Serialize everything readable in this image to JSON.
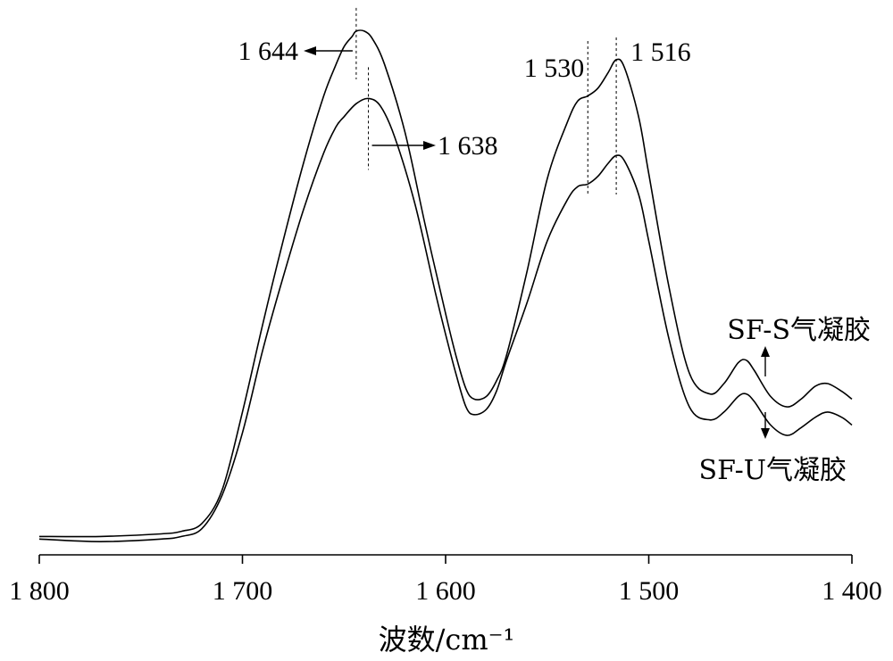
{
  "chart_data": {
    "type": "line",
    "title": "",
    "xlabel": "波数/cm⁻¹",
    "ylabel": "",
    "xlim": [
      1800,
      1400
    ],
    "x_reversed": true,
    "xticks": [
      1800,
      1700,
      1600,
      1500,
      1400
    ],
    "xtick_labels": [
      "1 800",
      "1 700",
      "1 600",
      "1 500",
      "1 400"
    ],
    "y_axis_visible": false,
    "ylim": [
      0,
      1
    ],
    "grid": false,
    "legend": "none",
    "series": [
      {
        "name": "SF-S气凝胶",
        "x": [
          1800,
          1770,
          1740,
          1730,
          1720,
          1710,
          1700,
          1690,
          1680,
          1670,
          1660,
          1654,
          1650,
          1646,
          1644,
          1640,
          1636,
          1630,
          1620,
          1610,
          1600,
          1595,
          1590,
          1586,
          1580,
          1575,
          1570,
          1560,
          1550,
          1540,
          1535,
          1530,
          1525,
          1520,
          1516,
          1512,
          1505,
          1500,
          1490,
          1480,
          1470,
          1463,
          1456,
          1452,
          1448,
          1440,
          1432,
          1425,
          1418,
          1412,
          1405,
          1400
        ],
        "y": [
          0.02,
          0.02,
          0.025,
          0.03,
          0.045,
          0.11,
          0.26,
          0.43,
          0.59,
          0.74,
          0.87,
          0.93,
          0.965,
          0.985,
          0.995,
          0.995,
          0.98,
          0.93,
          0.8,
          0.62,
          0.45,
          0.37,
          0.305,
          0.285,
          0.29,
          0.32,
          0.37,
          0.53,
          0.71,
          0.82,
          0.86,
          0.87,
          0.885,
          0.915,
          0.94,
          0.925,
          0.83,
          0.72,
          0.5,
          0.335,
          0.295,
          0.315,
          0.355,
          0.36,
          0.34,
          0.29,
          0.27,
          0.285,
          0.31,
          0.315,
          0.3,
          0.285
        ]
      },
      {
        "name": "SF-U气凝胶",
        "x": [
          1800,
          1770,
          1740,
          1730,
          1720,
          1710,
          1700,
          1690,
          1680,
          1670,
          1660,
          1654,
          1650,
          1644,
          1638,
          1632,
          1625,
          1615,
          1605,
          1600,
          1595,
          1590,
          1586,
          1580,
          1575,
          1570,
          1560,
          1550,
          1540,
          1535,
          1530,
          1525,
          1520,
          1516,
          1512,
          1505,
          1500,
          1490,
          1480,
          1470,
          1463,
          1456,
          1452,
          1448,
          1440,
          1432,
          1425,
          1418,
          1412,
          1405,
          1400
        ],
        "y": [
          0.015,
          0.01,
          0.015,
          0.02,
          0.035,
          0.1,
          0.22,
          0.38,
          0.52,
          0.65,
          0.76,
          0.81,
          0.83,
          0.855,
          0.865,
          0.85,
          0.79,
          0.66,
          0.49,
          0.41,
          0.335,
          0.27,
          0.255,
          0.265,
          0.3,
          0.36,
          0.47,
          0.59,
          0.67,
          0.695,
          0.7,
          0.715,
          0.74,
          0.755,
          0.745,
          0.68,
          0.59,
          0.4,
          0.27,
          0.245,
          0.26,
          0.29,
          0.295,
          0.28,
          0.235,
          0.215,
          0.23,
          0.25,
          0.26,
          0.25,
          0.235
        ]
      }
    ],
    "annotations": [
      {
        "text": "1 644",
        "x": 1644,
        "series": 0,
        "arrow": "left"
      },
      {
        "text": "1 638",
        "x": 1638,
        "series": 1,
        "arrow": "right"
      },
      {
        "text": "1 530",
        "x": 1530,
        "series": 0
      },
      {
        "text": "1 516",
        "x": 1516,
        "series": 0
      }
    ]
  }
}
